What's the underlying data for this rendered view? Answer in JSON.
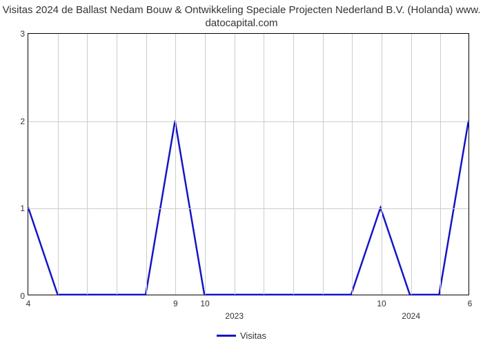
{
  "chart": {
    "type": "line",
    "title_line1": "Visitas 2024 de Ballast Nedam Bouw & Ontwikkeling Speciale Projecten Nederland B.V. (Holanda) www.",
    "title_line2": "datocapital.com",
    "title_fontsize": 15,
    "title_color": "#333333",
    "background_color": "#ffffff",
    "plot_border_color": "#000000",
    "grid_color": "#cccccc",
    "line_color": "#1414c8",
    "line_width": 2.5,
    "ylim": [
      0,
      3
    ],
    "yticks": [
      0,
      1,
      2,
      3
    ],
    "x_points": 16,
    "x_tick_labels": [
      "4",
      "",
      "",
      "",
      "",
      "9",
      "10",
      "",
      "",
      "",
      "",
      "",
      "10",
      "",
      "",
      "6"
    ],
    "x_tick2_labels": [
      "",
      "",
      "",
      "",
      "",
      "",
      "",
      "2023",
      "",
      "",
      "",
      "",
      "",
      "2024",
      "",
      ""
    ],
    "x_tick_fontsize": 12,
    "y_tick_fontsize": 12,
    "series": {
      "label": "Visitas",
      "values": [
        1,
        0,
        0,
        0,
        0,
        2,
        0,
        0,
        0,
        0,
        0,
        0,
        1,
        0,
        0,
        2
      ]
    },
    "legend_position": "bottom-center"
  }
}
